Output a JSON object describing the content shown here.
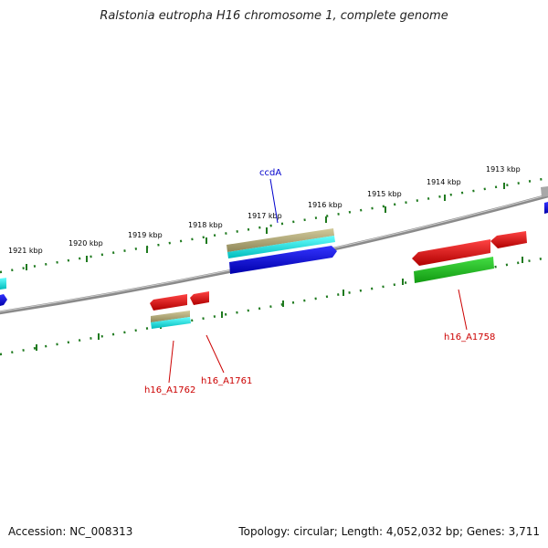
{
  "title": "Ralstonia eutropha H16 chromosome 1, complete genome",
  "accession": "Accession: NC_008313",
  "summary": "Topology: circular; Length: 4,052,032 bp; Genes: 3,711",
  "ticks": [
    {
      "label": "1913 kbp"
    },
    {
      "label": "1914 kbp"
    },
    {
      "label": "1915 kbp"
    },
    {
      "label": "1916 kbp"
    },
    {
      "label": "1917 kbp"
    },
    {
      "label": "1918 kbp"
    },
    {
      "label": "1919 kbp"
    },
    {
      "label": "1920 kbp"
    },
    {
      "label": "1921 kbp"
    }
  ],
  "gene_labels": {
    "ccdA": "ccdA",
    "h16_A1762": "h16_A1762",
    "h16_A1761": "h16_A1761",
    "h16_A1758": "h16_A1758"
  },
  "colors": {
    "backbone": "#7a7a7a",
    "ticks": "#1f7a1f",
    "forward_gene": "#0000dd",
    "reverse_gene": "#e00000",
    "cds": "#00e5e5",
    "misc": "#b5ad7a",
    "rrna": "#22bb22",
    "label_forward": "#0000cc",
    "label_reverse": "#cc0000"
  }
}
